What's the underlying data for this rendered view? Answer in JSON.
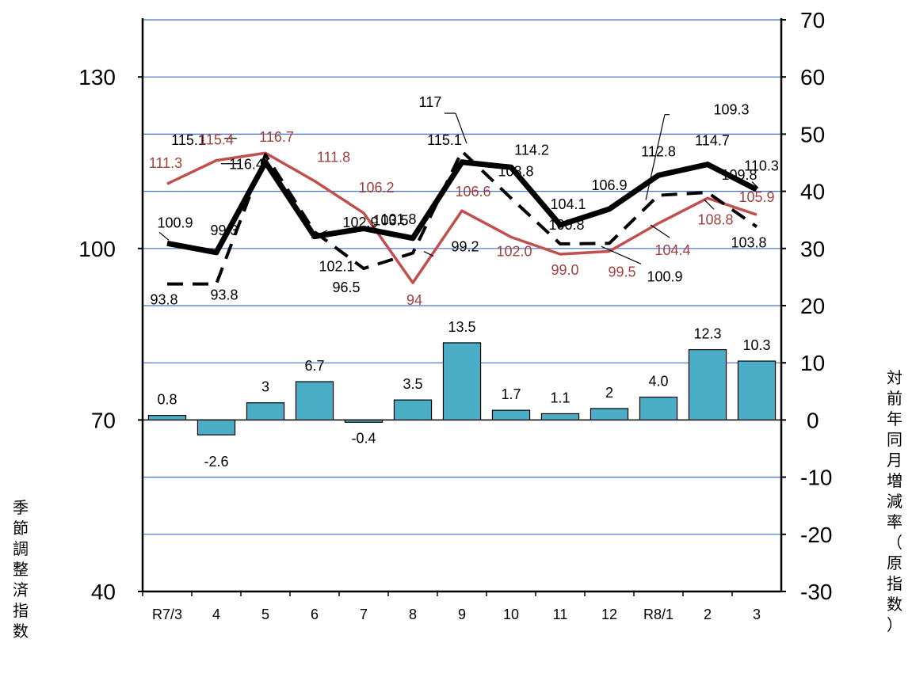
{
  "chart_data": {
    "type": "line+bar",
    "categories": [
      "R7/3",
      "4",
      "5",
      "6",
      "7",
      "8",
      "9",
      "10",
      "11",
      "12",
      "R8/1",
      "2",
      "3"
    ],
    "left_axis": {
      "label": "季節調整済指数",
      "ticks": [
        40,
        70,
        100,
        130
      ],
      "ylim": [
        40,
        140
      ]
    },
    "right_axis": {
      "label": "対前年同月増減率（原指数）",
      "ticks": [
        -30,
        -20,
        -10,
        0,
        10,
        20,
        30,
        40,
        50,
        60,
        70
      ],
      "ylim": [
        -30,
        70
      ]
    },
    "grid": true,
    "series": [
      {
        "style": "solid-thick-black",
        "axis": "left",
        "values": [
          100.9,
          99.3,
          115.1,
          102.1,
          103.5,
          101.8,
          115.1,
          114.2,
          104.1,
          106.9,
          112.8,
          114.7,
          110.3
        ],
        "labels": [
          "100.9",
          "99.3",
          "115.1",
          "102.1",
          "103.5",
          "101.8",
          "115.1",
          "114.2",
          "104.1",
          "106.9",
          "112.8",
          "114.7",
          "110.3"
        ]
      },
      {
        "style": "dashed-black",
        "axis": "left",
        "values": [
          93.8,
          93.8,
          116.4,
          102.9,
          96.5,
          99.2,
          117,
          108.8,
          100.8,
          100.9,
          109.3,
          109.8,
          103.8
        ],
        "labels": [
          "93.8",
          "93.8",
          "116.4",
          "102.9",
          "96.5",
          "99.2",
          "117",
          "108.8",
          "100.8",
          "100.9",
          "109.3",
          "109.8",
          "103.8"
        ]
      },
      {
        "style": "solid-red",
        "axis": "left",
        "values": [
          111.3,
          115.4,
          116.7,
          111.8,
          106.2,
          94,
          106.6,
          102.0,
          99.0,
          99.5,
          104.4,
          108.8,
          105.9
        ],
        "labels": [
          "111.3",
          "115.4",
          "116.7",
          "111.8",
          "106.2",
          "94",
          "106.6",
          "102.0",
          "99.0",
          "99.5",
          "104.4",
          "108.8",
          "105.9"
        ]
      },
      {
        "style": "bar-teal",
        "axis": "right",
        "values": [
          0.8,
          -2.6,
          3,
          6.7,
          -0.4,
          3.5,
          13.5,
          1.7,
          1.1,
          2,
          4.0,
          12.3,
          10.3
        ],
        "labels": [
          "0.8",
          "-2.6",
          "3",
          "6.7",
          "-0.4",
          "3.5",
          "13.5",
          "1.7",
          "1.1",
          "2",
          "4.0",
          "12.3",
          "10.3"
        ]
      }
    ],
    "colors": {
      "black_line": "#000000",
      "red_line": "#c0504d",
      "bar_fill": "#4bacc6",
      "grid": "#4472c4",
      "red_text": "#a0413d"
    }
  }
}
